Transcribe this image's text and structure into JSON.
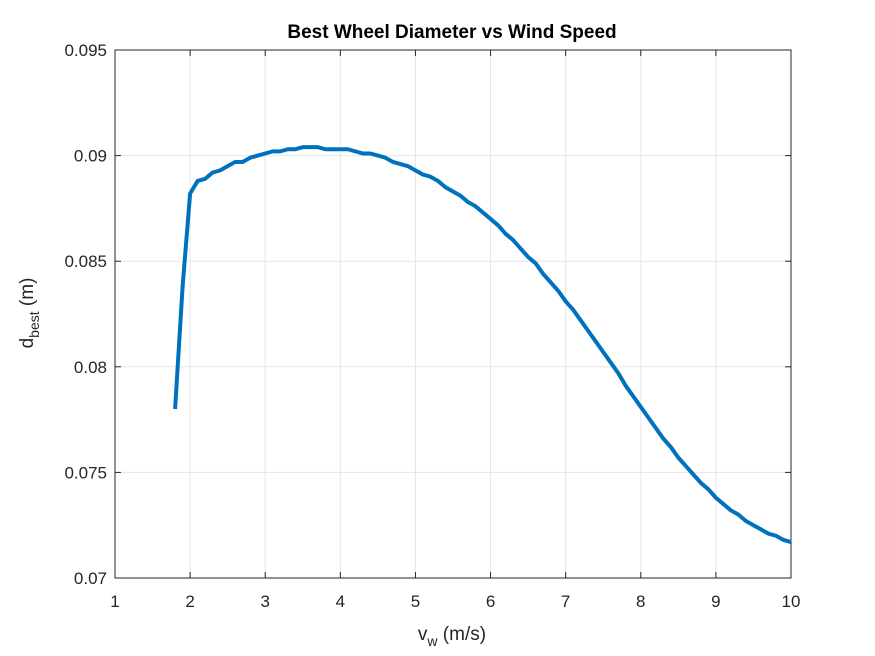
{
  "chart_data": {
    "type": "line",
    "title": "Best Wheel Diameter vs Wind Speed",
    "xlabel": {
      "base": "v",
      "sub": "w",
      "unit": " (m/s)"
    },
    "ylabel": {
      "base": "d",
      "sub": "best",
      "unit": " (m)"
    },
    "xlim": [
      1,
      10
    ],
    "ylim": [
      0.07,
      0.095
    ],
    "xticks": [
      1,
      2,
      3,
      4,
      5,
      6,
      7,
      8,
      9,
      10
    ],
    "xtick_labels": [
      "1",
      "2",
      "3",
      "4",
      "5",
      "6",
      "7",
      "8",
      "9",
      "10"
    ],
    "yticks": [
      0.07,
      0.075,
      0.08,
      0.085,
      0.09,
      0.095
    ],
    "ytick_labels": [
      "0.07",
      "0.075",
      "0.08",
      "0.085",
      "0.09",
      "0.095"
    ],
    "grid": true,
    "line_color": "#0072BD",
    "series": [
      {
        "x": [
          1.8,
          1.9,
          2.0,
          2.1,
          2.2,
          2.3,
          2.4,
          2.5,
          2.6,
          2.7,
          2.8,
          2.9,
          3.0,
          3.1,
          3.2,
          3.3,
          3.4,
          3.5,
          3.6,
          3.7,
          3.8,
          3.9,
          4.0,
          4.1,
          4.2,
          4.3,
          4.4,
          4.5,
          4.6,
          4.7,
          4.8,
          4.9,
          5.0,
          5.1,
          5.2,
          5.3,
          5.4,
          5.5,
          5.6,
          5.7,
          5.8,
          5.9,
          6.0,
          6.1,
          6.2,
          6.3,
          6.4,
          6.5,
          6.6,
          6.7,
          6.8,
          6.9,
          7.0,
          7.1,
          7.2,
          7.3,
          7.4,
          7.5,
          7.6,
          7.7,
          7.8,
          7.9,
          8.0,
          8.1,
          8.2,
          8.3,
          8.4,
          8.5,
          8.6,
          8.7,
          8.8,
          8.9,
          9.0,
          9.1,
          9.2,
          9.3,
          9.4,
          9.5,
          9.6,
          9.7,
          9.8,
          9.9,
          10.0
        ],
        "y": [
          0.078,
          0.0838,
          0.0882,
          0.0888,
          0.0889,
          0.0892,
          0.0893,
          0.0895,
          0.0897,
          0.0897,
          0.0899,
          0.09,
          0.0901,
          0.0902,
          0.0902,
          0.0903,
          0.0903,
          0.0904,
          0.0904,
          0.0904,
          0.0903,
          0.0903,
          0.0903,
          0.0903,
          0.0902,
          0.0901,
          0.0901,
          0.09,
          0.0899,
          0.0897,
          0.0896,
          0.0895,
          0.0893,
          0.0891,
          0.089,
          0.0888,
          0.0885,
          0.0883,
          0.0881,
          0.0878,
          0.0876,
          0.0873,
          0.087,
          0.0867,
          0.0863,
          0.086,
          0.0856,
          0.0852,
          0.0849,
          0.0844,
          0.084,
          0.0836,
          0.0831,
          0.0827,
          0.0822,
          0.0817,
          0.0812,
          0.0807,
          0.0802,
          0.0797,
          0.0791,
          0.0786,
          0.0781,
          0.0776,
          0.0771,
          0.0766,
          0.0762,
          0.0757,
          0.0753,
          0.0749,
          0.0745,
          0.0742,
          0.0738,
          0.0735,
          0.0732,
          0.073,
          0.0727,
          0.0725,
          0.0723,
          0.0721,
          0.072,
          0.0718,
          0.0717
        ]
      }
    ]
  }
}
